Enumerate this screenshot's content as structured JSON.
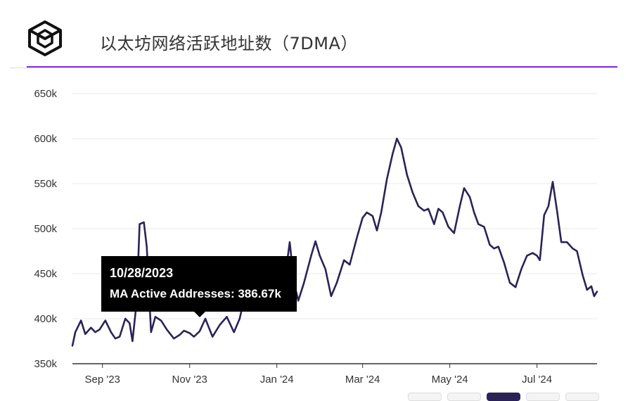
{
  "header": {
    "title": "以太坊网络活跃地址数（7DMA）",
    "logo_icon": "the-block-cube-logo-icon"
  },
  "tooltip": {
    "date": "10/28/2023",
    "label": "MA Active Addresses: 386.67k"
  },
  "colors": {
    "line": "#2b2356",
    "accent": "#8a2be2",
    "grid": "#e9e9ee",
    "tooltip_bg": "#000000"
  },
  "chart_data": {
    "type": "line",
    "title": "以太坊网络活跃地址数（7DMA）",
    "xlabel": "",
    "ylabel": "",
    "x_range": [
      "2023-08-11",
      "2024-08-12"
    ],
    "ylim": [
      350000,
      650000
    ],
    "y_ticks": [
      350000,
      400000,
      450000,
      500000,
      550000,
      600000,
      650000
    ],
    "y_tick_labels": [
      "350k",
      "400k",
      "450k",
      "500k",
      "550k",
      "600k",
      "650k"
    ],
    "x_ticks": [
      "2023-09-01",
      "2023-11-01",
      "2024-01-01",
      "2024-03-01",
      "2024-05-01",
      "2024-07-01"
    ],
    "x_tick_labels": [
      "Sep '23",
      "Nov '23",
      "Jan '24",
      "Mar '24",
      "May '24",
      "Jul '24"
    ],
    "grid": true,
    "legend": "none",
    "series": [
      {
        "values": [
          [
            "2023-08-11",
            370000
          ],
          [
            "2023-08-13",
            385000
          ],
          [
            "2023-08-17",
            398000
          ],
          [
            "2023-08-20",
            383000
          ],
          [
            "2023-08-24",
            390000
          ],
          [
            "2023-08-27",
            385000
          ],
          [
            "2023-08-30",
            388000
          ],
          [
            "2023-09-03",
            398000
          ],
          [
            "2023-09-07",
            385000
          ],
          [
            "2023-09-10",
            378000
          ],
          [
            "2023-09-13",
            380000
          ],
          [
            "2023-09-17",
            400000
          ],
          [
            "2023-09-20",
            395000
          ],
          [
            "2023-09-22",
            375000
          ],
          [
            "2023-09-25",
            420000
          ],
          [
            "2023-09-27",
            505000
          ],
          [
            "2023-09-30",
            507000
          ],
          [
            "2023-10-02",
            480000
          ],
          [
            "2023-10-05",
            385000
          ],
          [
            "2023-10-08",
            402000
          ],
          [
            "2023-10-12",
            398000
          ],
          [
            "2023-10-16",
            388000
          ],
          [
            "2023-10-21",
            378000
          ],
          [
            "2023-10-25",
            382000
          ],
          [
            "2023-10-28",
            386670
          ],
          [
            "2023-11-01",
            384000
          ],
          [
            "2023-11-04",
            380000
          ],
          [
            "2023-11-08",
            386000
          ],
          [
            "2023-11-12",
            400000
          ],
          [
            "2023-11-17",
            380000
          ],
          [
            "2023-11-22",
            393000
          ],
          [
            "2023-11-27",
            402000
          ],
          [
            "2023-12-02",
            385000
          ],
          [
            "2023-12-06",
            400000
          ],
          [
            "2023-12-11",
            435000
          ],
          [
            "2023-12-16",
            455000
          ],
          [
            "2023-12-21",
            468000
          ],
          [
            "2023-12-26",
            440000
          ],
          [
            "2024-01-02",
            430000
          ],
          [
            "2024-01-05",
            425000
          ],
          [
            "2024-01-10",
            485000
          ],
          [
            "2024-01-13",
            440000
          ],
          [
            "2024-01-16",
            420000
          ],
          [
            "2024-01-20",
            440000
          ],
          [
            "2024-01-25",
            470000
          ],
          [
            "2024-01-28",
            486000
          ],
          [
            "2024-01-31",
            470000
          ],
          [
            "2024-02-04",
            455000
          ],
          [
            "2024-02-08",
            425000
          ],
          [
            "2024-02-12",
            440000
          ],
          [
            "2024-02-17",
            465000
          ],
          [
            "2024-02-21",
            460000
          ],
          [
            "2024-02-26",
            490000
          ],
          [
            "2024-03-01",
            512000
          ],
          [
            "2024-03-04",
            518000
          ],
          [
            "2024-03-08",
            514000
          ],
          [
            "2024-03-11",
            498000
          ],
          [
            "2024-03-14",
            518000
          ],
          [
            "2024-03-18",
            555000
          ],
          [
            "2024-03-22",
            583000
          ],
          [
            "2024-03-25",
            600000
          ],
          [
            "2024-03-28",
            590000
          ],
          [
            "2024-04-01",
            560000
          ],
          [
            "2024-04-05",
            540000
          ],
          [
            "2024-04-09",
            525000
          ],
          [
            "2024-04-13",
            520000
          ],
          [
            "2024-04-16",
            522000
          ],
          [
            "2024-04-20",
            505000
          ],
          [
            "2024-04-23",
            522000
          ],
          [
            "2024-04-26",
            518000
          ],
          [
            "2024-04-30",
            502000
          ],
          [
            "2024-05-04",
            495000
          ],
          [
            "2024-05-08",
            525000
          ],
          [
            "2024-05-11",
            545000
          ],
          [
            "2024-05-15",
            535000
          ],
          [
            "2024-05-18",
            518000
          ],
          [
            "2024-05-21",
            505000
          ],
          [
            "2024-05-25",
            502000
          ],
          [
            "2024-05-29",
            482000
          ],
          [
            "2024-06-01",
            478000
          ],
          [
            "2024-06-04",
            480000
          ],
          [
            "2024-06-08",
            462000
          ],
          [
            "2024-06-12",
            440000
          ],
          [
            "2024-06-16",
            435000
          ],
          [
            "2024-06-20",
            455000
          ],
          [
            "2024-06-24",
            470000
          ],
          [
            "2024-06-28",
            473000
          ],
          [
            "2024-07-01",
            470000
          ],
          [
            "2024-07-03",
            465000
          ],
          [
            "2024-07-06",
            515000
          ],
          [
            "2024-07-09",
            525000
          ],
          [
            "2024-07-12",
            552000
          ],
          [
            "2024-07-15",
            520000
          ],
          [
            "2024-07-18",
            485000
          ],
          [
            "2024-07-22",
            485000
          ],
          [
            "2024-07-26",
            478000
          ],
          [
            "2024-07-29",
            475000
          ],
          [
            "2024-08-02",
            448000
          ],
          [
            "2024-08-05",
            432000
          ],
          [
            "2024-08-08",
            436000
          ],
          [
            "2024-08-10",
            425000
          ],
          [
            "2024-08-12",
            430000
          ]
        ]
      }
    ]
  }
}
